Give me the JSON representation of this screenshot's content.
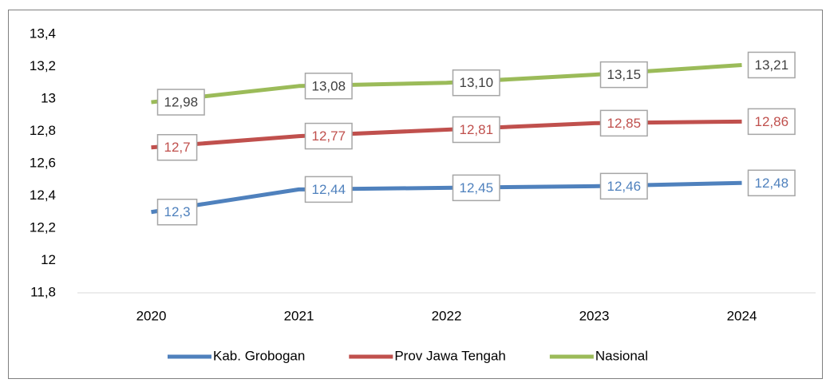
{
  "chart_data": {
    "type": "line",
    "categories": [
      "2020",
      "2021",
      "2022",
      "2023",
      "2024"
    ],
    "series": [
      {
        "name": "Kab. Grobogan",
        "color": "#4f81bd",
        "label_color": "#4f81bd",
        "values": [
          12.3,
          12.44,
          12.45,
          12.46,
          12.48
        ],
        "value_labels": [
          "12,3",
          "12,44",
          "12,45",
          "12,46",
          "12,48"
        ]
      },
      {
        "name": "Prov Jawa Tengah",
        "color": "#c0504d",
        "label_color": "#c0504d",
        "values": [
          12.7,
          12.77,
          12.81,
          12.85,
          12.86
        ],
        "value_labels": [
          "12,7",
          "12,77",
          "12,81",
          "12,85",
          "12,86"
        ]
      },
      {
        "name": "Nasional",
        "color": "#9bbb59",
        "label_color": "#404040",
        "values": [
          12.98,
          13.08,
          13.1,
          13.15,
          13.21
        ],
        "value_labels": [
          "12,98",
          "13,08",
          "13,10",
          "13,15",
          "13,21"
        ]
      }
    ],
    "ylim": [
      11.8,
      13.4
    ],
    "yticks": [
      {
        "value": 11.8,
        "label": "11,8"
      },
      12,
      {
        "value": 12.2,
        "label": "12,2"
      },
      {
        "value": 12.4,
        "label": "12,4"
      },
      {
        "value": 12.6,
        "label": "12,6"
      },
      {
        "value": 12.8,
        "label": "12,8"
      },
      13,
      {
        "value": 13.2,
        "label": "13,2"
      },
      {
        "value": 13.4,
        "label": "13,4"
      }
    ],
    "grid": false,
    "legend": "bottom"
  }
}
